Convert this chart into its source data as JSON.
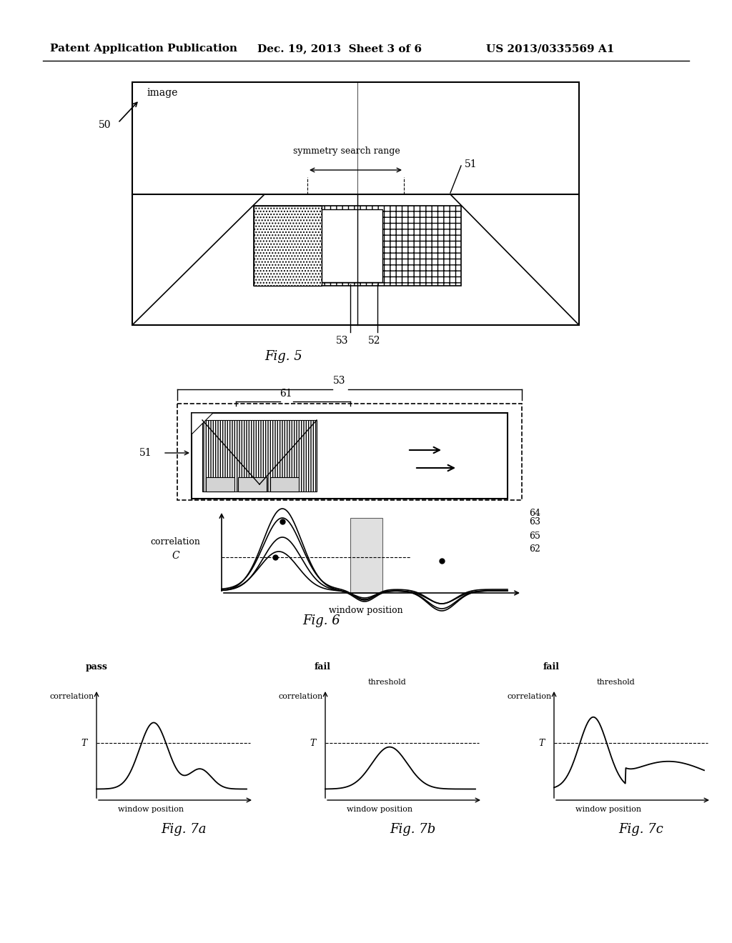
{
  "bg_color": "#ffffff",
  "header_text": "Patent Application Publication",
  "header_date": "Dec. 19, 2013  Sheet 3 of 6",
  "header_patent": "US 2013/0335569 A1"
}
